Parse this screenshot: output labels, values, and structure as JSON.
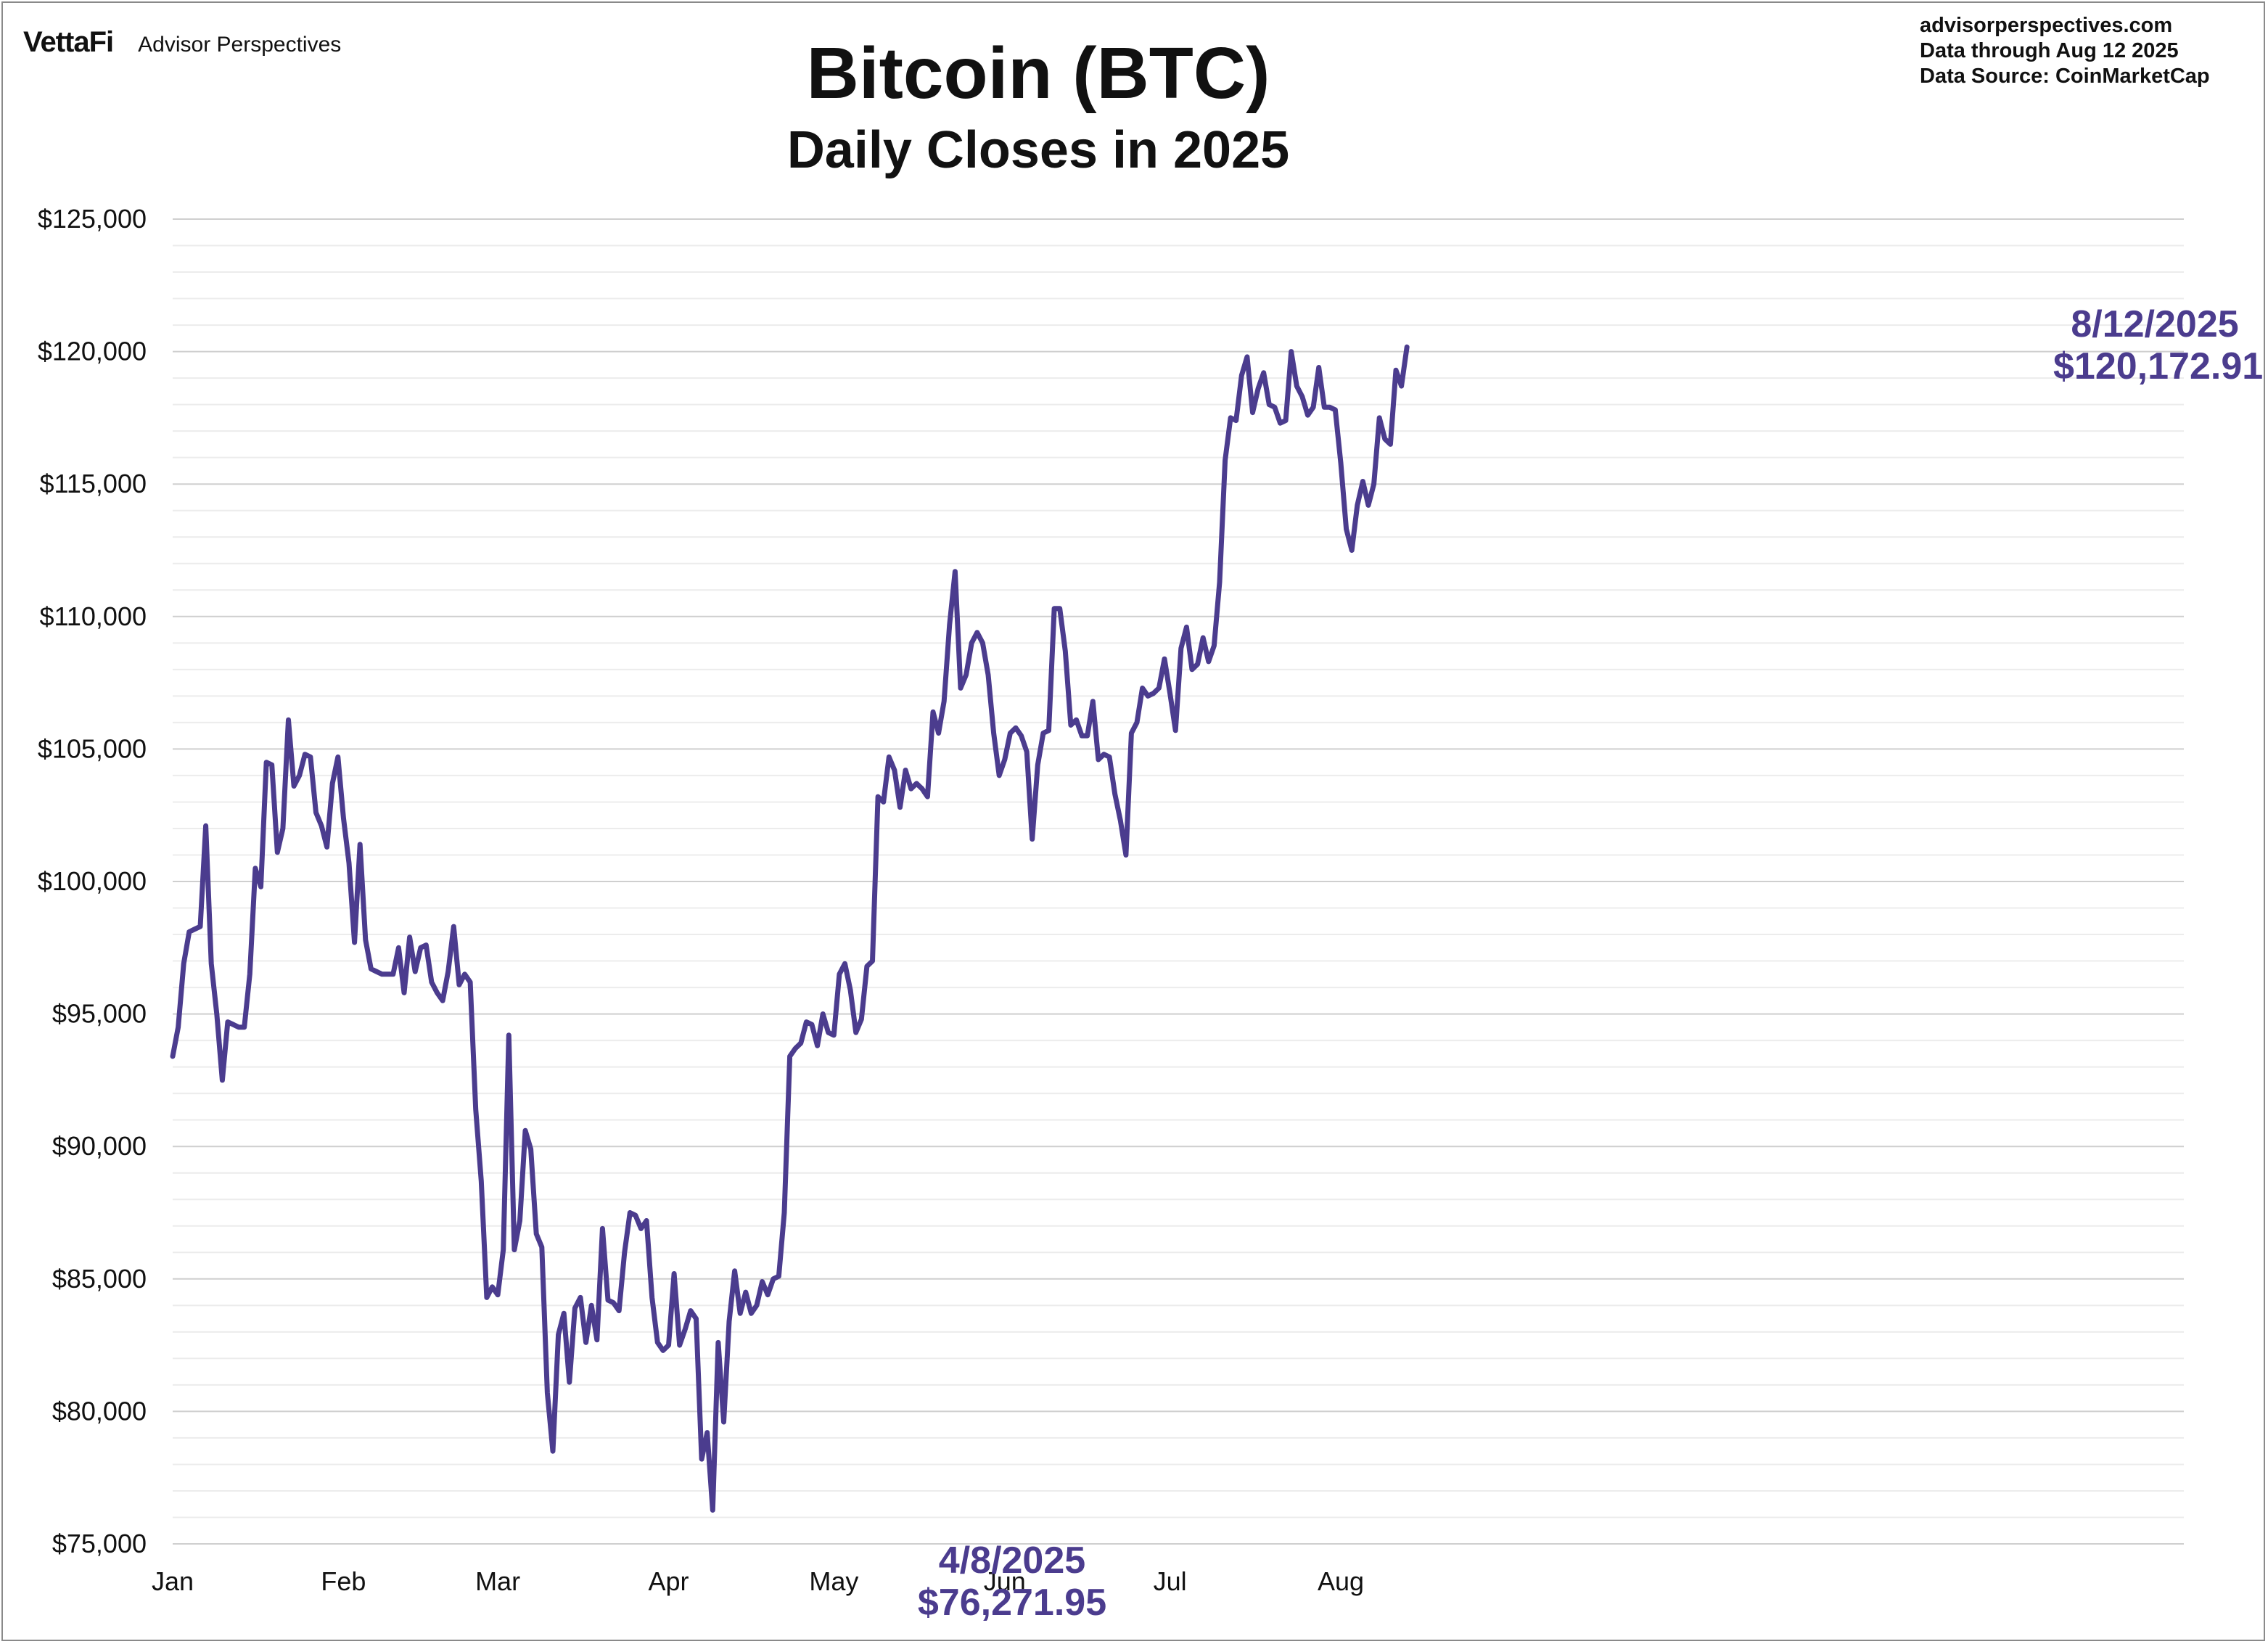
{
  "brand": {
    "logo_text": "VettaFi",
    "name": "Advisor Perspectives"
  },
  "meta": {
    "site": "advisorperspectives.com",
    "data_through": "Data through  Aug 12 2025",
    "source": "Data Source:  CoinMarketCap"
  },
  "colors": {
    "line": "#4b3c8e",
    "gridline_major": "#cfcfcf",
    "gridline_minor": "#ececec",
    "text": "#111111"
  },
  "annotations": {
    "latest": {
      "date": "8/12/2025",
      "value": "$120,172.91"
    },
    "low": {
      "date": "4/8/2025",
      "value": "$76,271.95"
    }
  },
  "chart_data": {
    "type": "line",
    "title": "Bitcoin (BTC)",
    "subtitle": "Daily Closes in 2025",
    "xlabel": "",
    "ylabel": "",
    "x_start": "2025-01-01",
    "x_end": "2025-08-12",
    "xlim": [
      "2025-01-01",
      "2025-12-31"
    ],
    "x_tick_labels": [
      "Jan",
      "Feb",
      "Mar",
      "Apr",
      "May",
      "Jun",
      "Jul",
      "Aug"
    ],
    "ylim": [
      75000,
      125000
    ],
    "y_ticks": [
      75000,
      80000,
      85000,
      90000,
      95000,
      100000,
      105000,
      110000,
      115000,
      120000,
      125000
    ],
    "y_tick_labels": [
      "$75,000",
      "$80,000",
      "$85,000",
      "$90,000",
      "$95,000",
      "$100,000",
      "$105,000",
      "$110,000",
      "$115,000",
      "$120,000",
      "$125,000"
    ],
    "grid": true,
    "legend": "none",
    "series": [
      {
        "values": [
          93400,
          94500,
          96900,
          98100,
          98200,
          98300,
          102100,
          96900,
          95000,
          92500,
          94700,
          94600,
          94500,
          94500,
          96500,
          100500,
          99800,
          104500,
          104400,
          101100,
          102000,
          106100,
          103600,
          104000,
          104800,
          104700,
          102600,
          102100,
          101300,
          103700,
          104700,
          102400,
          100700,
          97700,
          101400,
          97800,
          96700,
          96600,
          96500,
          96500,
          96500,
          97500,
          95800,
          97900,
          96600,
          97500,
          97600,
          96200,
          95800,
          95500,
          96600,
          98300,
          96100,
          96500,
          96200,
          91400,
          88700,
          84300,
          84700,
          84400,
          86100,
          94200,
          86100,
          87200,
          90600,
          89900,
          86700,
          86200,
          80700,
          78500,
          82900,
          83700,
          81100,
          83900,
          84300,
          82600,
          84000,
          82700,
          86900,
          84200,
          84100,
          83800,
          86000,
          87500,
          87400,
          86900,
          87200,
          84300,
          82600,
          82300,
          82500,
          85200,
          82500,
          83100,
          83800,
          83500,
          78200,
          79200,
          76272,
          82600,
          79600,
          83400,
          85300,
          83700,
          84500,
          83700,
          84000,
          84900,
          84400,
          85000,
          85100,
          87500,
          93400,
          93700,
          93900,
          94700,
          94600,
          93800,
          95000,
          94300,
          94200,
          96500,
          96900,
          95900,
          94300,
          94800,
          96800,
          97000,
          103200,
          103000,
          104700,
          104200,
          102800,
          104200,
          103500,
          103700,
          103500,
          103200,
          106400,
          105600,
          106800,
          109700,
          111700,
          107300,
          107800,
          109000,
          109400,
          109000,
          107800,
          105600,
          104000,
          104600,
          105600,
          105800,
          105500,
          104900,
          101600,
          104400,
          105600,
          105700,
          110300,
          110300,
          108700,
          105900,
          106100,
          105500,
          105500,
          106800,
          104600,
          104800,
          104700,
          103300,
          102300,
          101000,
          105600,
          106000,
          107300,
          107000,
          107100,
          107300,
          108400,
          107100,
          105700,
          108800,
          109600,
          108000,
          108200,
          109200,
          108300,
          108900,
          111300,
          115900,
          117500,
          117400,
          119100,
          119800,
          117700,
          118600,
          119200,
          118000,
          117900,
          117300,
          117400,
          120000,
          118700,
          118300,
          117600,
          117900,
          119400,
          117900,
          117900,
          117800,
          115800,
          113300,
          112500,
          114200,
          115100,
          114200,
          115000,
          117500,
          116700,
          116500,
          119300,
          118700,
          120173
        ]
      }
    ]
  }
}
